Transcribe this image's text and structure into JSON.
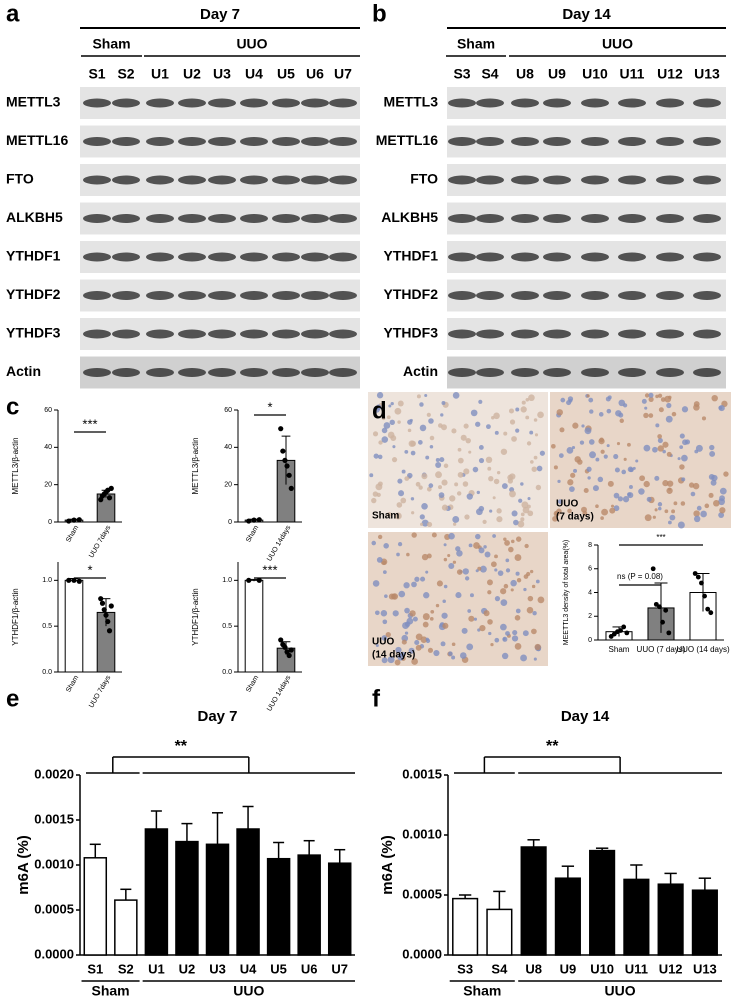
{
  "panels": {
    "a": {
      "letter": "a",
      "title": "Day 7",
      "groups": [
        "Sham",
        "UUO"
      ],
      "lanes": [
        "S1",
        "S2",
        "U1",
        "U2",
        "U3",
        "U4",
        "U5",
        "U6",
        "U7"
      ],
      "proteins": [
        "METTL3",
        "METTL16",
        "FTO",
        "ALKBH5",
        "YTHDF1",
        "YTHDF2",
        "YTHDF3",
        "Actin"
      ]
    },
    "b": {
      "letter": "b",
      "title": "Day 14",
      "groups": [
        "Sham",
        "UUO"
      ],
      "lanes": [
        "S3",
        "S4",
        "U8",
        "U9",
        "U10",
        "U11",
        "U12",
        "U13"
      ],
      "proteins": [
        "METTL3",
        "METTL16",
        "FTO",
        "ALKBH5",
        "YTHDF1",
        "YTHDF2",
        "YTHDF3",
        "Actin"
      ]
    },
    "c": {
      "letter": "c"
    },
    "d": {
      "letter": "d",
      "image_labels": [
        [
          "Sham"
        ],
        [
          "UUO",
          "(7 days)"
        ],
        [
          "UUO",
          "(14 days)"
        ]
      ]
    },
    "e": {
      "letter": "e"
    },
    "f": {
      "letter": "f"
    }
  },
  "chart_data": [
    {
      "type": "bar",
      "ylabel": "METTL3/β-actin",
      "categories": [
        "Sham",
        "UUO 7days"
      ],
      "values": [
        1,
        15
      ],
      "errors": [
        0.5,
        2
      ],
      "colors": [
        "#ffffff",
        "#808080"
      ],
      "points": [
        [
          0.5,
          1,
          1.2
        ],
        [
          12,
          14,
          15,
          16,
          17,
          13,
          18
        ]
      ],
      "ylim": [
        0,
        60
      ],
      "yticks": [
        0,
        20,
        40,
        60
      ],
      "annotations": [
        "***"
      ],
      "error_bars": "both"
    },
    {
      "type": "bar",
      "ylabel": "METTL3/β-actin",
      "categories": [
        "Sham",
        "UUO 14days"
      ],
      "values": [
        1,
        33
      ],
      "errors": [
        0.5,
        13
      ],
      "colors": [
        "#ffffff",
        "#808080"
      ],
      "points": [
        [
          0.5,
          1,
          1.2
        ],
        [
          50,
          38,
          33,
          30,
          25,
          18
        ]
      ],
      "ylim": [
        0,
        60
      ],
      "yticks": [
        0,
        20,
        40,
        60
      ],
      "annotations": [
        "*"
      ],
      "error_bars": "both"
    },
    {
      "type": "bar",
      "ylabel": "YTHDF1/β-actin",
      "categories": [
        "Sham",
        "UUO 7days"
      ],
      "values": [
        1.0,
        0.65
      ],
      "errors": [
        0.02,
        0.15
      ],
      "colors": [
        "#ffffff",
        "#808080"
      ],
      "points": [
        [
          1,
          1,
          0.99
        ],
        [
          0.8,
          0.75,
          0.68,
          0.62,
          0.55,
          0.45,
          0.72
        ]
      ],
      "ylim": [
        0,
        1.2
      ],
      "yticks": [
        {
          "value": 0,
          "label": "0.0"
        },
        {
          "value": 0.5,
          "label": "0.5"
        },
        {
          "value": 1,
          "label": "1.0"
        }
      ],
      "annotations": [
        "*"
      ],
      "error_bars": "both"
    },
    {
      "type": "bar",
      "ylabel": "YTHDF1/β-actin",
      "categories": [
        "Sham",
        "UUO 14days"
      ],
      "values": [
        1.0,
        0.26
      ],
      "errors": [
        0.01,
        0.07
      ],
      "colors": [
        "#ffffff",
        "#808080"
      ],
      "points": [
        [
          1,
          1
        ],
        [
          0.35,
          0.3,
          0.27,
          0.22,
          0.18,
          0.24
        ]
      ],
      "ylim": [
        0,
        1.2
      ],
      "yticks": [
        {
          "value": 0,
          "label": "0.0"
        },
        {
          "value": 0.5,
          "label": "0.5"
        },
        {
          "value": 1,
          "label": "1.0"
        }
      ],
      "annotations": [
        "***"
      ],
      "error_bars": "both"
    },
    {
      "type": "bar",
      "ylabel": "MEETTL3 density of total area(%)",
      "categories": [
        "Sham",
        "UUO (7 days)",
        "UUO (14 days)"
      ],
      "values": [
        0.7,
        2.7,
        4.0
      ],
      "errors": [
        0.4,
        2.1,
        1.6
      ],
      "colors": [
        "#ffffff",
        "#808080",
        "#ffffff"
      ],
      "points": [
        [
          0.3,
          0.5,
          0.7,
          0.8,
          1.1,
          0.6
        ],
        [
          6,
          3,
          2.8,
          1.5,
          2.5,
          0.6
        ],
        [
          5.6,
          5.3,
          4.8,
          3.7,
          2.6,
          2.3
        ]
      ],
      "ylim": [
        0,
        8
      ],
      "yticks": [
        0,
        2,
        4,
        6,
        8
      ],
      "annotations": [
        "ns (P = 0.08)",
        "***"
      ],
      "error_bars": "both"
    },
    {
      "type": "bar",
      "title": "Day 7",
      "ylabel": "m6A (%)",
      "categories": [
        "S1",
        "S2",
        "U1",
        "U2",
        "U3",
        "U4",
        "U5",
        "U6",
        "U7"
      ],
      "values": [
        0.00108,
        0.00061,
        0.0014,
        0.00126,
        0.00123,
        0.0014,
        0.00107,
        0.00111,
        0.00102
      ],
      "errors": [
        0.00015,
        0.00012,
        0.0002,
        0.0002,
        0.00035,
        0.00025,
        0.00018,
        0.00016,
        0.00015
      ],
      "colors": [
        "#ffffff",
        "#ffffff",
        "#000000",
        "#000000",
        "#000000",
        "#000000",
        "#000000",
        "#000000",
        "#000000"
      ],
      "groups": [
        "Sham",
        "UUO"
      ],
      "ylim": [
        0,
        0.002
      ],
      "yticks": [
        {
          "value": 0,
          "label": "0.0000"
        },
        {
          "value": 0.0005,
          "label": "0.0005"
        },
        {
          "value": 0.001,
          "label": "0.0010"
        },
        {
          "value": 0.0015,
          "label": "0.0015"
        },
        {
          "value": 0.002,
          "label": "0.0020"
        }
      ],
      "annotations": [
        "**"
      ],
      "error_bars": "upper"
    },
    {
      "type": "bar",
      "title": "Day 14",
      "ylabel": "m6A (%)",
      "categories": [
        "S3",
        "S4",
        "U8",
        "U9",
        "U10",
        "U11",
        "U12",
        "U13"
      ],
      "values": [
        0.00047,
        0.00038,
        0.0009,
        0.00064,
        0.00087,
        0.00063,
        0.00059,
        0.00054
      ],
      "errors": [
        3e-05,
        0.00015,
        6e-05,
        0.0001,
        2e-05,
        0.00012,
        9e-05,
        0.0001
      ],
      "colors": [
        "#ffffff",
        "#ffffff",
        "#000000",
        "#000000",
        "#000000",
        "#000000",
        "#000000",
        "#000000"
      ],
      "groups": [
        "Sham",
        "UUO"
      ],
      "ylim": [
        0,
        0.0015
      ],
      "yticks": [
        {
          "value": 0,
          "label": "0.0000"
        },
        {
          "value": 0.0005,
          "label": "0.0005"
        },
        {
          "value": 0.001,
          "label": "0.0010"
        },
        {
          "value": 0.0015,
          "label": "0.0015"
        }
      ],
      "annotations": [
        "**"
      ],
      "error_bars": "upper"
    }
  ]
}
